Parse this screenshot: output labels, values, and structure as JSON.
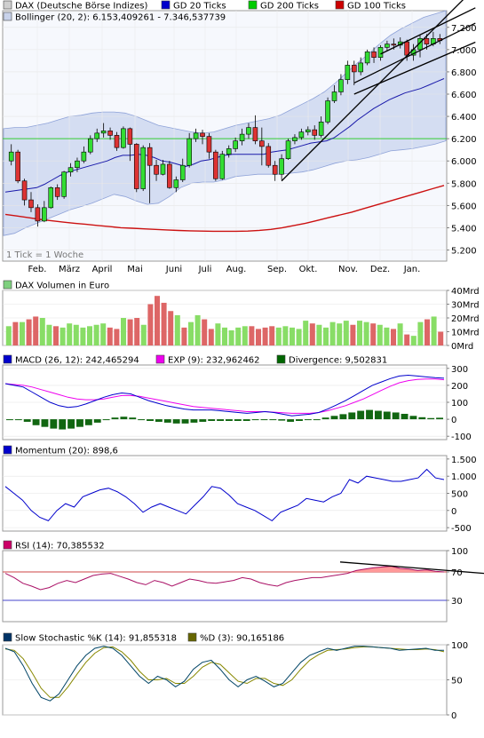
{
  "chart_data": [
    {
      "type": "candlestick",
      "legend": [
        {
          "label": "DAX (Deutsche Börse Indizes)",
          "color": "#cfcfcf"
        },
        {
          "label": "GD 20 Ticks",
          "color": "#0000cc"
        },
        {
          "label": "GD 200 Ticks",
          "color": "#00cc00"
        },
        {
          "label": "GD 100 Ticks",
          "color": "#cc0000"
        }
      ],
      "legend2": {
        "label": "Bollinger (20, 2): 6.153,409261 - 7.346,537739",
        "color": "#c8d2ea"
      },
      "ylim": [
        5100,
        7350
      ],
      "y_ticks": [
        5200,
        5400,
        5600,
        5800,
        6000,
        6200,
        6400,
        6600,
        6800,
        7000,
        7200
      ],
      "y_tick_labels": [
        "5.200",
        "5.400",
        "5.600",
        "5.800",
        "6.000",
        "6.200",
        "6.400",
        "6.600",
        "6.800",
        "7.000",
        "7.200"
      ],
      "x_labels": [
        "Feb.",
        "März",
        "April",
        "Mai",
        "Juni",
        "Juli",
        "Aug.",
        "Sep.",
        "Okt.",
        "Nov.",
        "Dez.",
        "Jan."
      ],
      "note": "1 Tick = 1 Woche",
      "candles": [
        {
          "o": 6000,
          "c": 6080,
          "h": 6150,
          "l": 5960
        },
        {
          "o": 6080,
          "c": 5820,
          "h": 6100,
          "l": 5800
        },
        {
          "o": 5820,
          "c": 5650,
          "h": 5840,
          "l": 5600
        },
        {
          "o": 5650,
          "c": 5580,
          "h": 5720,
          "l": 5540
        },
        {
          "o": 5580,
          "c": 5460,
          "h": 5610,
          "l": 5410
        },
        {
          "o": 5460,
          "c": 5580,
          "h": 5640,
          "l": 5450
        },
        {
          "o": 5580,
          "c": 5760,
          "h": 5770,
          "l": 5570
        },
        {
          "o": 5760,
          "c": 5680,
          "h": 5790,
          "l": 5650
        },
        {
          "o": 5680,
          "c": 5900,
          "h": 5910,
          "l": 5660
        },
        {
          "o": 5900,
          "c": 5940,
          "h": 5980,
          "l": 5860
        },
        {
          "o": 5940,
          "c": 6000,
          "h": 6030,
          "l": 5900
        },
        {
          "o": 6000,
          "c": 6080,
          "h": 6130,
          "l": 5980
        },
        {
          "o": 6080,
          "c": 6200,
          "h": 6230,
          "l": 6060
        },
        {
          "o": 6200,
          "c": 6250,
          "h": 6290,
          "l": 6170
        },
        {
          "o": 6250,
          "c": 6270,
          "h": 6340,
          "l": 6210
        },
        {
          "o": 6270,
          "c": 6230,
          "h": 6300,
          "l": 6190
        },
        {
          "o": 6230,
          "c": 6120,
          "h": 6260,
          "l": 6090
        },
        {
          "o": 6120,
          "c": 6290,
          "h": 6310,
          "l": 6110
        },
        {
          "o": 6290,
          "c": 6150,
          "h": 6300,
          "l": 6000
        },
        {
          "o": 6150,
          "c": 5750,
          "h": 6160,
          "l": 5720
        },
        {
          "o": 5750,
          "c": 6120,
          "h": 6140,
          "l": 5730
        },
        {
          "o": 6120,
          "c": 5960,
          "h": 6160,
          "l": 5620
        },
        {
          "o": 5960,
          "c": 5880,
          "h": 6010,
          "l": 5820
        },
        {
          "o": 5880,
          "c": 5970,
          "h": 6010,
          "l": 5870
        },
        {
          "o": 5970,
          "c": 5760,
          "h": 6000,
          "l": 5750
        },
        {
          "o": 5760,
          "c": 5830,
          "h": 5860,
          "l": 5720
        },
        {
          "o": 5830,
          "c": 5960,
          "h": 6020,
          "l": 5810
        },
        {
          "o": 5960,
          "c": 6200,
          "h": 6250,
          "l": 5940
        },
        {
          "o": 6200,
          "c": 6250,
          "h": 6290,
          "l": 6170
        },
        {
          "o": 6250,
          "c": 6220,
          "h": 6280,
          "l": 6150
        },
        {
          "o": 6220,
          "c": 6080,
          "h": 6250,
          "l": 6020
        },
        {
          "o": 6080,
          "c": 5840,
          "h": 6100,
          "l": 5820
        },
        {
          "o": 5840,
          "c": 6060,
          "h": 6090,
          "l": 5830
        },
        {
          "o": 6060,
          "c": 6110,
          "h": 6140,
          "l": 6030
        },
        {
          "o": 6110,
          "c": 6180,
          "h": 6210,
          "l": 6080
        },
        {
          "o": 6180,
          "c": 6240,
          "h": 6290,
          "l": 6140
        },
        {
          "o": 6240,
          "c": 6300,
          "h": 6340,
          "l": 6200
        },
        {
          "o": 6300,
          "c": 6180,
          "h": 6410,
          "l": 6150
        },
        {
          "o": 6180,
          "c": 6130,
          "h": 6300,
          "l": 5960
        },
        {
          "o": 6130,
          "c": 5960,
          "h": 6160,
          "l": 5940
        },
        {
          "o": 5960,
          "c": 5880,
          "h": 6000,
          "l": 5820
        },
        {
          "o": 5880,
          "c": 6020,
          "h": 6060,
          "l": 5830
        },
        {
          "o": 6020,
          "c": 6180,
          "h": 6200,
          "l": 6010
        },
        {
          "o": 6180,
          "c": 6210,
          "h": 6240,
          "l": 6150
        },
        {
          "o": 6210,
          "c": 6260,
          "h": 6290,
          "l": 6190
        },
        {
          "o": 6260,
          "c": 6280,
          "h": 6310,
          "l": 6230
        },
        {
          "o": 6280,
          "c": 6230,
          "h": 6320,
          "l": 6190
        },
        {
          "o": 6230,
          "c": 6350,
          "h": 6400,
          "l": 6210
        },
        {
          "o": 6350,
          "c": 6540,
          "h": 6570,
          "l": 6330
        },
        {
          "o": 6540,
          "c": 6620,
          "h": 6680,
          "l": 6520
        },
        {
          "o": 6620,
          "c": 6730,
          "h": 6780,
          "l": 6590
        },
        {
          "o": 6730,
          "c": 6860,
          "h": 6900,
          "l": 6690
        },
        {
          "o": 6860,
          "c": 6800,
          "h": 6900,
          "l": 6680
        },
        {
          "o": 6800,
          "c": 6880,
          "h": 6930,
          "l": 6770
        },
        {
          "o": 6880,
          "c": 6980,
          "h": 7000,
          "l": 6860
        },
        {
          "o": 6980,
          "c": 6930,
          "h": 7020,
          "l": 6880
        },
        {
          "o": 6930,
          "c": 7020,
          "h": 7040,
          "l": 6900
        },
        {
          "o": 7020,
          "c": 7050,
          "h": 7080,
          "l": 6990
        },
        {
          "o": 7050,
          "c": 7040,
          "h": 7100,
          "l": 7000
        },
        {
          "o": 7040,
          "c": 7070,
          "h": 7110,
          "l": 7010
        },
        {
          "o": 7070,
          "c": 6950,
          "h": 7090,
          "l": 6900
        },
        {
          "o": 6950,
          "c": 7000,
          "h": 7050,
          "l": 6900
        },
        {
          "o": 7000,
          "c": 7100,
          "h": 7130,
          "l": 6930
        },
        {
          "o": 7100,
          "c": 7050,
          "h": 7140,
          "l": 7000
        },
        {
          "o": 7050,
          "c": 7100,
          "h": 7160,
          "l": 7030
        },
        {
          "o": 7100,
          "c": 7080,
          "h": 7140,
          "l": 7050
        }
      ],
      "sma20": [
        5720,
        5730,
        5740,
        5750,
        5760,
        5790,
        5830,
        5870,
        5900,
        5920,
        5940,
        5960,
        5980,
        6000,
        6030,
        6050,
        6050,
        6060,
        6050,
        6030,
        6000,
        5990,
        5970,
        5950,
        5970,
        6000,
        6010,
        6030,
        6050,
        6060,
        6060,
        6060,
        6060,
        6060,
        6080,
        6090,
        6100,
        6120,
        6140,
        6160,
        6170,
        6180,
        6210,
        6260,
        6310,
        6370,
        6420,
        6470,
        6510,
        6550,
        6580,
        6610,
        6630,
        6650,
        6680,
        6710,
        6740
      ],
      "sma100": [
        5520,
        5505,
        5490,
        5475,
        5462,
        5450,
        5440,
        5430,
        5420,
        5410,
        5400,
        5395,
        5390,
        5385,
        5380,
        5375,
        5372,
        5370,
        5368,
        5368,
        5368,
        5370,
        5376,
        5385,
        5400,
        5420,
        5440,
        5465,
        5490,
        5515,
        5540,
        5570,
        5600,
        5630,
        5660,
        5690,
        5720,
        5750,
        5780
      ],
      "sma200": 6200,
      "bollinger_upper": [
        6290,
        6300,
        6300,
        6320,
        6340,
        6370,
        6400,
        6410,
        6430,
        6440,
        6440,
        6430,
        6400,
        6360,
        6320,
        6300,
        6280,
        6260,
        6250,
        6260,
        6290,
        6320,
        6340,
        6360,
        6380,
        6410,
        6460,
        6510,
        6560,
        6620,
        6700,
        6790,
        6880,
        6960,
        7050,
        7130,
        7190,
        7240,
        7290,
        7320,
        7350
      ],
      "bollinger_lower": [
        5330,
        5350,
        5400,
        5440,
        5480,
        5520,
        5560,
        5590,
        5620,
        5660,
        5700,
        5680,
        5640,
        5610,
        5620,
        5680,
        5760,
        5800,
        5810,
        5810,
        5830,
        5860,
        5870,
        5880,
        5880,
        5880,
        5890,
        5900,
        5920,
        5950,
        5980,
        6000,
        6010,
        6030,
        6060,
        6090,
        6100,
        6110,
        6130,
        6150,
        6180
      ],
      "trendlines": [
        {
          "from": [
            41,
            5820
          ],
          "to": [
            65,
            7240
          ]
        },
        {
          "from": [
            52,
            6700
          ],
          "to": [
            65,
            7080
          ]
        },
        {
          "from": [
            52,
            6600
          ],
          "to": [
            65,
            6930
          ]
        },
        {
          "from": [
            56,
            6960
          ],
          "to": [
            65,
            7220
          ]
        }
      ]
    },
    {
      "type": "bar",
      "legend": {
        "label": "DAX Volumen in Euro",
        "color": "#7fd07f"
      },
      "ylim": [
        0,
        40
      ],
      "y_tick_labels": [
        "0Mrd",
        "10Mrd",
        "20Mrd",
        "30Mrd",
        "40Mrd"
      ],
      "y_ticks": [
        0,
        10,
        20,
        30,
        40
      ],
      "values": [
        14,
        17,
        17,
        19,
        21,
        20,
        15,
        14,
        13,
        16,
        15,
        13,
        14,
        15,
        16,
        13,
        12,
        20,
        19,
        20,
        15,
        30,
        36,
        31,
        25,
        22,
        13,
        17,
        22,
        19,
        12,
        16,
        13,
        11,
        13,
        14,
        14,
        12,
        13,
        14,
        13,
        14,
        13,
        12,
        18,
        16,
        15,
        13,
        17,
        16,
        18,
        15,
        18,
        17,
        16,
        15,
        13,
        12,
        16,
        8,
        7,
        17,
        19,
        21,
        10
      ],
      "up": [
        true,
        false,
        true,
        false,
        false,
        true,
        true,
        false,
        true,
        true,
        true,
        true,
        true,
        true,
        true,
        false,
        false,
        true,
        false,
        false,
        true,
        false,
        false,
        false,
        false,
        true,
        false,
        true,
        true,
        false,
        false,
        true,
        true,
        true,
        true,
        true,
        false,
        false,
        false,
        false,
        true,
        true,
        true,
        true,
        true,
        false,
        true,
        true,
        true,
        true,
        true,
        false,
        true,
        true,
        false,
        true,
        true,
        false,
        true,
        false,
        true,
        true,
        false,
        true,
        false
      ]
    },
    {
      "type": "line",
      "legend": [
        {
          "label": "MACD (26, 12): 242,465294",
          "color": "#0000cc"
        },
        {
          "label": "EXP (9): 232,962462",
          "color": "#ee00ee"
        },
        {
          "label": "Divergence: 9,502831",
          "color": "#006600"
        }
      ],
      "ylim": [
        -120,
        320
      ],
      "y_ticks": [
        -100,
        0,
        100,
        200,
        300
      ],
      "y_tick_labels": [
        "-100",
        "0",
        "100",
        "200",
        "300"
      ],
      "macd": [
        210,
        200,
        190,
        160,
        130,
        100,
        80,
        70,
        75,
        90,
        110,
        130,
        145,
        155,
        150,
        130,
        110,
        95,
        80,
        70,
        60,
        55,
        55,
        55,
        50,
        45,
        40,
        35,
        40,
        45,
        40,
        30,
        20,
        25,
        30,
        40,
        60,
        85,
        110,
        140,
        170,
        200,
        220,
        240,
        255,
        260,
        255,
        250,
        245,
        242
      ],
      "exp": [
        210,
        205,
        200,
        190,
        175,
        160,
        145,
        130,
        120,
        115,
        115,
        120,
        130,
        140,
        140,
        135,
        125,
        115,
        105,
        95,
        85,
        75,
        70,
        65,
        60,
        55,
        50,
        45,
        45,
        45,
        42,
        38,
        35,
        35,
        35,
        40,
        50,
        65,
        80,
        100,
        120,
        145,
        170,
        195,
        215,
        228,
        235,
        238,
        238,
        233
      ],
      "divergence": [
        0,
        -5,
        -15,
        -35,
        -45,
        -55,
        -60,
        -55,
        -45,
        -35,
        -20,
        -5,
        10,
        15,
        10,
        0,
        -10,
        -15,
        -20,
        -25,
        -25,
        -20,
        -15,
        -10,
        -10,
        -10,
        -10,
        -10,
        -5,
        0,
        -2,
        -8,
        -15,
        -10,
        -5,
        0,
        10,
        20,
        30,
        40,
        50,
        55,
        50,
        45,
        40,
        32,
        20,
        12,
        7,
        9
      ]
    },
    {
      "type": "line",
      "legend": {
        "label": "Momentum (20): 898,6",
        "color": "#0000cc"
      },
      "ylim": [
        -600,
        1600
      ],
      "y_ticks": [
        -500,
        0,
        500,
        1000,
        1500
      ],
      "y_tick_labels": [
        "-500",
        "0",
        "500",
        "1.000",
        "1.500"
      ],
      "values": [
        700,
        500,
        300,
        0,
        -200,
        -300,
        0,
        200,
        100,
        400,
        500,
        600,
        650,
        550,
        400,
        200,
        -50,
        100,
        200,
        100,
        0,
        -100,
        150,
        400,
        700,
        650,
        450,
        200,
        100,
        0,
        -150,
        -300,
        -50,
        50,
        150,
        350,
        300,
        250,
        400,
        500,
        900,
        800,
        1000,
        950,
        900,
        850,
        850,
        900,
        950,
        1200,
        950,
        900
      ]
    },
    {
      "type": "line",
      "legend": {
        "label": "RSI (14): 70,385532",
        "color": "#cc0066"
      },
      "ylim": [
        0,
        100
      ],
      "y_ticks": [
        30,
        70,
        100
      ],
      "y_tick_labels": [
        "30",
        "70",
        "100"
      ],
      "values": [
        68,
        62,
        54,
        50,
        45,
        48,
        54,
        58,
        55,
        60,
        65,
        67,
        68,
        64,
        60,
        55,
        52,
        58,
        55,
        50,
        55,
        60,
        58,
        55,
        54,
        56,
        58,
        62,
        60,
        55,
        52,
        50,
        55,
        58,
        60,
        62,
        62,
        64,
        66,
        68,
        72,
        74,
        76,
        77,
        78,
        75,
        74,
        72,
        73,
        71,
        70
      ],
      "trendline": {
        "from": [
          0.76,
          84
        ],
        "to": [
          1.0,
          73
        ]
      }
    },
    {
      "type": "line",
      "legend": [
        {
          "label": "Slow Stochastic %K (14): 91,855318",
          "color": "#003366"
        },
        {
          "label": "%D (3): 90,165186",
          "color": "#666600"
        }
      ],
      "ylim": [
        0,
        100
      ],
      "y_ticks": [
        0,
        50,
        100
      ],
      "y_tick_labels": [
        "0",
        "50",
        "100"
      ],
      "k": [
        95,
        90,
        70,
        45,
        25,
        20,
        30,
        50,
        70,
        85,
        95,
        98,
        95,
        85,
        70,
        55,
        45,
        55,
        50,
        40,
        48,
        65,
        75,
        78,
        65,
        50,
        40,
        50,
        55,
        48,
        40,
        45,
        60,
        75,
        85,
        90,
        95,
        92,
        95,
        98,
        98,
        97,
        96,
        95,
        92,
        93,
        94,
        95,
        92,
        92
      ],
      "d": [
        94,
        92,
        80,
        60,
        38,
        25,
        25,
        40,
        58,
        75,
        88,
        96,
        97,
        90,
        78,
        62,
        50,
        50,
        52,
        45,
        45,
        55,
        68,
        75,
        72,
        60,
        48,
        45,
        52,
        52,
        45,
        42,
        50,
        65,
        78,
        86,
        92,
        93,
        94,
        96,
        97,
        97,
        96,
        95,
        94,
        93,
        93,
        94,
        93,
        90
      ]
    }
  ]
}
